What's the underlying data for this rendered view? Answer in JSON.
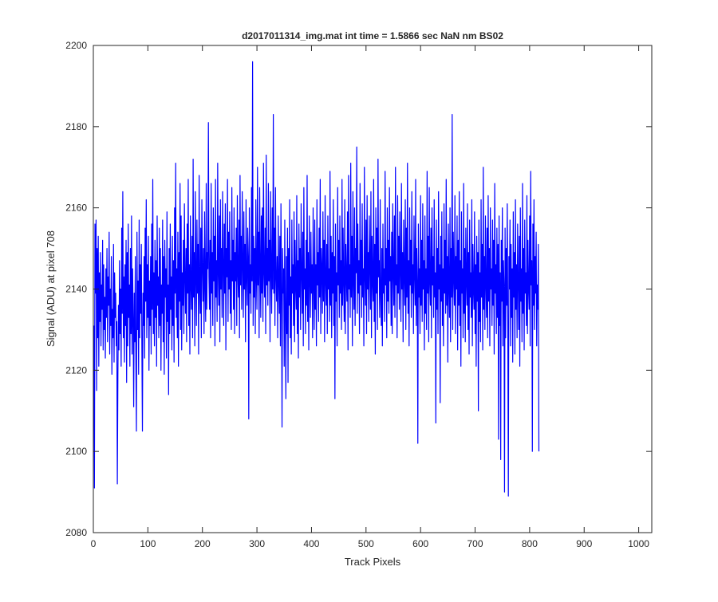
{
  "colors": {
    "series": "#0000ff",
    "axes": "#262626",
    "background": "#ffffff"
  },
  "chart_data": {
    "type": "line",
    "title": "d2017011314_img.mat int time = 1.5866 sec  NaN nm BS02",
    "xlabel": "Track Pixels",
    "ylabel": "Signal (ADU) at pixel 708",
    "xlim": [
      0,
      1024
    ],
    "ylim": [
      2080,
      2200
    ],
    "xticks": [
      0,
      100,
      200,
      300,
      400,
      500,
      600,
      700,
      800,
      900,
      1000
    ],
    "yticks": [
      2080,
      2100,
      2120,
      2140,
      2160,
      2180,
      2200
    ],
    "grid": false,
    "legend": "none",
    "series": [
      {
        "x_start": 1,
        "x_step": 1,
        "values": [
          2131,
          2091,
          2156,
          2139,
          2157,
          2115,
          2150,
          2128,
          2153,
          2121,
          2144,
          2132,
          2149,
          2126,
          2141,
          2135,
          2152,
          2125,
          2146,
          2130,
          2138,
          2123,
          2145,
          2133,
          2150,
          2127,
          2143,
          2136,
          2154,
          2124,
          2140,
          2131,
          2148,
          2119,
          2135,
          2128,
          2151,
          2122,
          2144,
          2133,
          2139,
          2126,
          2132,
          2092,
          2118,
          2136,
          2125,
          2147,
          2129,
          2140,
          2121,
          2155,
          2134,
          2164,
          2128,
          2143,
          2122,
          2146,
          2131,
          2152,
          2117,
          2149,
          2126,
          2156,
          2133,
          2141,
          2121,
          2150,
          2129,
          2158,
          2124,
          2145,
          2133,
          2111,
          2139,
          2127,
          2148,
          2122,
          2105,
          2154,
          2130,
          2142,
          2119,
          2157,
          2128,
          2146,
          2134,
          2151,
          2126,
          2105,
          2139,
          2131,
          2148,
          2123,
          2155,
          2137,
          2162,
          2128,
          2146,
          2133,
          2153,
          2120,
          2142,
          2131,
          2148,
          2124,
          2156,
          2135,
          2167,
          2129,
          2144,
          2126,
          2152,
          2133,
          2147,
          2121,
          2158,
          2136,
          2143,
          2128,
          2155,
          2131,
          2150,
          2120,
          2141,
          2134,
          2157,
          2127,
          2148,
          2119,
          2152,
          2138,
          2145,
          2123,
          2159,
          2132,
          2141,
          2114,
          2150,
          2129,
          2156,
          2135,
          2143,
          2125,
          2153,
          2131,
          2147,
          2122,
          2160,
          2139,
          2171,
          2133,
          2145,
          2128,
          2154,
          2121,
          2149,
          2137,
          2166,
          2130,
          2158,
          2125,
          2144,
          2136,
          2152,
          2129,
          2161,
          2143,
          2134,
          2150,
          2127,
          2156,
          2139,
          2167,
          2131,
          2146,
          2124,
          2158,
          2141,
          2135,
          2153,
          2128,
          2172,
          2138,
          2149,
          2126,
          2164,
          2143,
          2131,
          2157,
          2139,
          2151,
          2124,
          2168,
          2140,
          2134,
          2155,
          2128,
          2162,
          2146,
          2137,
          2150,
          2129,
          2159,
          2141,
          2132,
          2166,
          2135,
          2149,
          2145,
          2181,
          2143,
          2135,
          2152,
          2128,
          2166,
          2139,
          2149,
          2131,
          2160,
          2142,
          2153,
          2126,
          2167,
          2138,
          2147,
          2132,
          2171,
          2144,
          2136,
          2158,
          2127,
          2162,
          2140,
          2150,
          2133,
          2164,
          2145,
          2131,
          2156,
          2139,
          2161,
          2125,
          2150,
          2143,
          2167,
          2132,
          2154,
          2140,
          2159,
          2134,
          2147,
          2130,
          2165,
          2142,
          2152,
          2135,
          2160,
          2129,
          2149,
          2142,
          2155,
          2131,
          2163,
          2144,
          2138,
          2157,
          2128,
          2168,
          2141,
          2153,
          2135,
          2164,
          2146,
          2133,
          2159,
          2140,
          2151,
          2127,
          2162,
          2143,
          2136,
          2155,
          2148,
          2108,
          2160,
          2139,
          2146,
          2134,
          2165,
          2142,
          2196,
          2131,
          2153,
          2138,
          2150,
          2129,
          2162,
          2143,
          2135,
          2170,
          2141,
          2154,
          2128,
          2165,
          2146,
          2133,
          2158,
          2139,
          2160,
          2132,
          2171,
          2144,
          2138,
          2155,
          2129,
          2173,
          2141,
          2150,
          2136,
          2166,
          2142,
          2152,
          2127,
          2164,
          2145,
          2134,
          2160,
          2140,
          2183,
          2139,
          2155,
          2131,
          2165,
          2143,
          2137,
          2148,
          2128,
          2158,
          2142,
          2134,
          2153,
          2126,
          2161,
          2140,
          2106,
          2150,
          2139,
          2145,
          2121,
          2157,
          2134,
          2113,
          2148,
          2129,
          2155,
          2117,
          2150,
          2136,
          2162,
          2128,
          2143,
          2124,
          2157,
          2139,
          2146,
          2131,
          2159,
          2127,
          2152,
          2141,
          2135,
          2163,
          2129,
          2147,
          2123,
          2156,
          2138,
          2150,
          2130,
          2161,
          2144,
          2134,
          2154,
          2126,
          2165,
          2140,
          2145,
          2129,
          2152,
          2136,
          2168,
          2132,
          2149,
          2125,
          2158,
          2143,
          2133,
          2154,
          2139,
          2146,
          2128,
          2160,
          2141,
          2130,
          2157,
          2135,
          2146,
          2126,
          2162,
          2141,
          2149,
          2132,
          2155,
          2138,
          2167,
          2129,
          2150,
          2145,
          2134,
          2159,
          2137,
          2152,
          2127,
          2163,
          2142,
          2136,
          2151,
          2129,
          2158,
          2140,
          2145,
          2132,
          2169,
          2136,
          2153,
          2128,
          2149,
          2139,
          2162,
          2131,
          2148,
          2113,
          2156,
          2137,
          2144,
          2126,
          2165,
          2141,
          2152,
          2133,
          2158,
          2139,
          2147,
          2130,
          2167,
          2136,
          2155,
          2141,
          2132,
          2162,
          2129,
          2151,
          2143,
          2137,
          2159,
          2125,
          2168,
          2140,
          2146,
          2133,
          2171,
          2138,
          2153,
          2126,
          2164,
          2142,
          2135,
          2160,
          2131,
          2150,
          2144,
          2175,
          2134,
          2156,
          2139,
          2147,
          2129,
          2166,
          2141,
          2152,
          2133,
          2161,
          2138,
          2145,
          2126,
          2170,
          2143,
          2136,
          2157,
          2129,
          2163,
          2140,
          2149,
          2132,
          2158,
          2146,
          2135,
          2164,
          2128,
          2153,
          2142,
          2137,
          2167,
          2132,
          2151,
          2124,
          2160,
          2139,
          2155,
          2130,
          2172,
          2143,
          2147,
          2133,
          2162,
          2138,
          2131,
          2150,
          2126,
          2156,
          2139,
          2145,
          2132,
          2169,
          2141,
          2150,
          2128,
          2160,
          2137,
          2152,
          2134,
          2165,
          2142,
          2148,
          2131,
          2154,
          2129,
          2161,
          2144,
          2136,
          2158,
          2133,
          2170,
          2141,
          2146,
          2128,
          2163,
          2139,
          2153,
          2135,
          2159,
          2145,
          2132,
          2166,
          2140,
          2149,
          2127,
          2157,
          2143,
          2136,
          2162,
          2130,
          2155,
          2138,
          2171,
          2134,
          2147,
          2126,
          2160,
          2141,
          2152,
          2133,
          2164,
          2139,
          2146,
          2129,
          2158,
          2144,
          2136,
          2167,
          2131,
          2150,
          2142,
          2102,
          2156,
          2138,
          2145,
          2129,
          2163,
          2136,
          2152,
          2132,
          2161,
          2140,
          2147,
          2125,
          2158,
          2134,
          2145,
          2130,
          2169,
          2139,
          2153,
          2127,
          2165,
          2142,
          2136,
          2155,
          2128,
          2160,
          2141,
          2148,
          2133,
          2162,
          2138,
          2144,
          2107,
          2157,
          2135,
          2150,
          2129,
          2164,
          2140,
          2146,
          2112,
          2153,
          2137,
          2159,
          2131,
          2145,
          2126,
          2161,
          2139,
          2152,
          2134,
          2167,
          2136,
          2148,
          2122,
          2156,
          2141,
          2133,
          2160,
          2127,
          2150,
          2138,
          2183,
          2130,
          2154,
          2143,
          2136,
          2163,
          2129,
          2148,
          2140,
          2158,
          2125,
          2152,
          2136,
          2164,
          2131,
          2147,
          2121,
          2159,
          2139,
          2145,
          2128,
          2166,
          2134,
          2150,
          2127,
          2155,
          2142,
          2136,
          2161,
          2130,
          2149,
          2124,
          2157,
          2138,
          2144,
          2133,
          2162,
          2126,
          2151,
          2140,
          2135,
          2159,
          2129,
          2146,
          2121,
          2153,
          2137,
          2149,
          2110,
          2157,
          2132,
          2144,
          2127,
          2162,
          2138,
          2151,
          2125,
          2170,
          2135,
          2148,
          2130,
          2158,
          2141,
          2133,
          2155,
          2128,
          2163,
          2137,
          2150,
          2126,
          2160,
          2140,
          2145,
          2131,
          2157,
          2136,
          2152,
          2124,
          2166,
          2139,
          2146,
          2129,
          2155,
          2133,
          2151,
          2103,
          2158,
          2131,
          2144,
          2098,
          2152,
          2137,
          2160,
          2126,
          2147,
          2141,
          2090,
          2155,
          2128,
          2150,
          2136,
          2161,
          2131,
          2089,
          2148,
          2140,
          2157,
          2126,
          2151,
          2133,
          2145,
          2122,
          2159,
          2138,
          2149,
          2124,
          2162,
          2135,
          2146,
          2128,
          2156,
          2142,
          2130,
          2153,
          2121,
          2160,
          2137,
          2145,
          2127,
          2166,
          2134,
          2150,
          2125,
          2157,
          2139,
          2144,
          2131,
          2163,
          2129,
          2152,
          2140,
          2135,
          2158,
          2126,
          2169,
          2141,
          2147,
          2100,
          2156,
          2136,
          2162,
          2130,
          2148,
          2139,
          2154,
          2126,
          2141,
          2135,
          2151,
          2100
        ]
      }
    ]
  }
}
